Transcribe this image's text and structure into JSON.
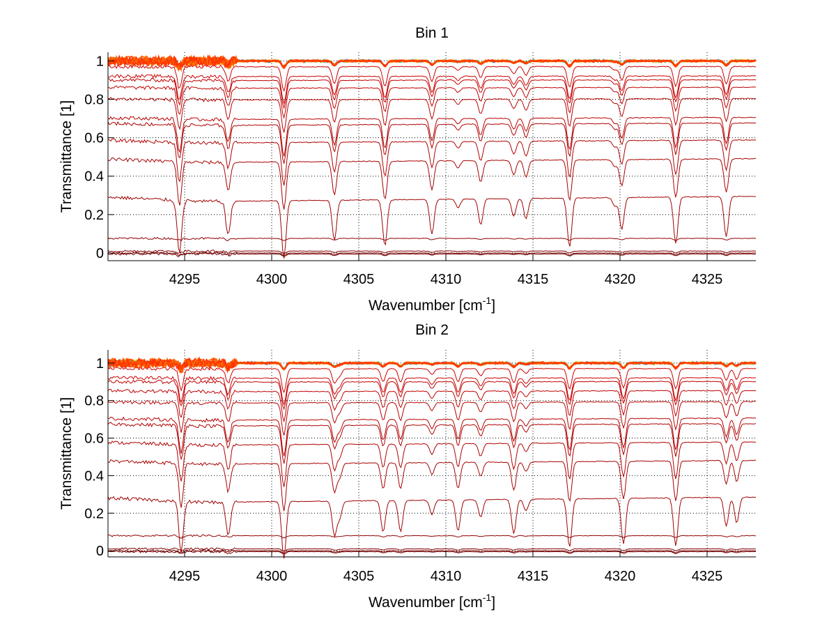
{
  "chart_data": [
    {
      "type": "line",
      "title": "Bin 1",
      "xlabel": "Wavenumber [cm",
      "xlabel_sup": "-1",
      "xlabel_end": "]",
      "ylabel": "Transmittance [1]",
      "xlim": [
        4290.6,
        4327.8
      ],
      "ylim": [
        -0.04,
        1.045
      ],
      "xticks": [
        4295,
        4300,
        4305,
        4310,
        4315,
        4320,
        4325
      ],
      "xtick_labels": [
        "4295",
        "4300",
        "4305",
        "4310",
        "4315",
        "4320",
        "4325"
      ],
      "yticks": [
        0,
        0.2,
        0.4,
        0.6,
        0.8,
        1
      ],
      "ytick_labels": [
        "0",
        "0.2",
        "0.4",
        "0.6",
        "0.8",
        "1"
      ],
      "grid": true,
      "box": false,
      "absorption_lines_cm1": [
        4294.7,
        4297.5,
        4300.7,
        4303.6,
        4306.5,
        4309.2,
        4310.7,
        4312.0,
        4313.9,
        4314.6,
        4317.1,
        4319.7,
        4320.1,
        4323.2,
        4326.1
      ],
      "absorption_line_strengths": [
        0.9,
        0.6,
        1.0,
        0.7,
        0.8,
        0.6,
        0.15,
        0.45,
        0.3,
        0.35,
        0.85,
        0.15,
        0.55,
        0.8,
        0.7
      ],
      "series_baselines": [
        1.0,
        1.0,
        1.0,
        1.0,
        1.0,
        1.0,
        0.97,
        0.92,
        0.9,
        0.86,
        0.8,
        0.7,
        0.67,
        0.58,
        0.48,
        0.28,
        0.076,
        0.01,
        0.0,
        -0.005
      ],
      "series_colors": [
        "#ffcc00",
        "#3366cc",
        "#33cccc",
        "#66cc33",
        "#ff9900",
        "#ff3300",
        "#cc0000",
        "#cc0000",
        "#c00000",
        "#c00000",
        "#b80000",
        "#b80000",
        "#b00000",
        "#b00000",
        "#a80000",
        "#a00000",
        "#900000",
        "#800000",
        "#800000",
        "#700000"
      ]
    },
    {
      "type": "line",
      "title": "Bin 2",
      "xlabel": "Wavenumber [cm",
      "xlabel_sup": "-1",
      "xlabel_end": "]",
      "ylabel": "Transmittance [1]",
      "xlim": [
        4290.6,
        4327.8
      ],
      "ylim": [
        -0.033,
        1.07
      ],
      "xticks": [
        4295,
        4300,
        4305,
        4310,
        4315,
        4320,
        4325
      ],
      "xtick_labels": [
        "4295",
        "4300",
        "4305",
        "4310",
        "4315",
        "4320",
        "4325"
      ],
      "yticks": [
        0,
        0.2,
        0.4,
        0.6,
        0.8,
        1
      ],
      "ytick_labels": [
        "0",
        "0.2",
        "0.4",
        "0.6",
        "0.8",
        "1"
      ],
      "grid": true,
      "box": false,
      "absorption_lines_cm1": [
        4294.8,
        4297.5,
        4300.7,
        4303.6,
        4303.9,
        4306.4,
        4307.4,
        4309.2,
        4310.7,
        4312.0,
        4313.9,
        4314.6,
        4317.1,
        4320.2,
        4323.2,
        4326.1,
        4326.7
      ],
      "absorption_line_strengths": [
        0.9,
        0.6,
        1.0,
        0.6,
        0.3,
        0.55,
        0.55,
        0.25,
        0.55,
        0.3,
        0.6,
        0.2,
        0.85,
        0.8,
        0.85,
        0.5,
        0.45
      ],
      "series_baselines": [
        1.0,
        1.0,
        1.0,
        1.0,
        1.0,
        1.0,
        0.97,
        0.92,
        0.9,
        0.85,
        0.79,
        0.7,
        0.67,
        0.57,
        0.47,
        0.27,
        0.08,
        0.01,
        0.0,
        -0.005
      ],
      "series_colors": [
        "#ffcc00",
        "#3366cc",
        "#33cccc",
        "#66cc33",
        "#ff9900",
        "#ff3300",
        "#cc0000",
        "#cc0000",
        "#c00000",
        "#c00000",
        "#b80000",
        "#b80000",
        "#b00000",
        "#b00000",
        "#a80000",
        "#a00000",
        "#900000",
        "#800000",
        "#800000",
        "#700000"
      ]
    }
  ]
}
